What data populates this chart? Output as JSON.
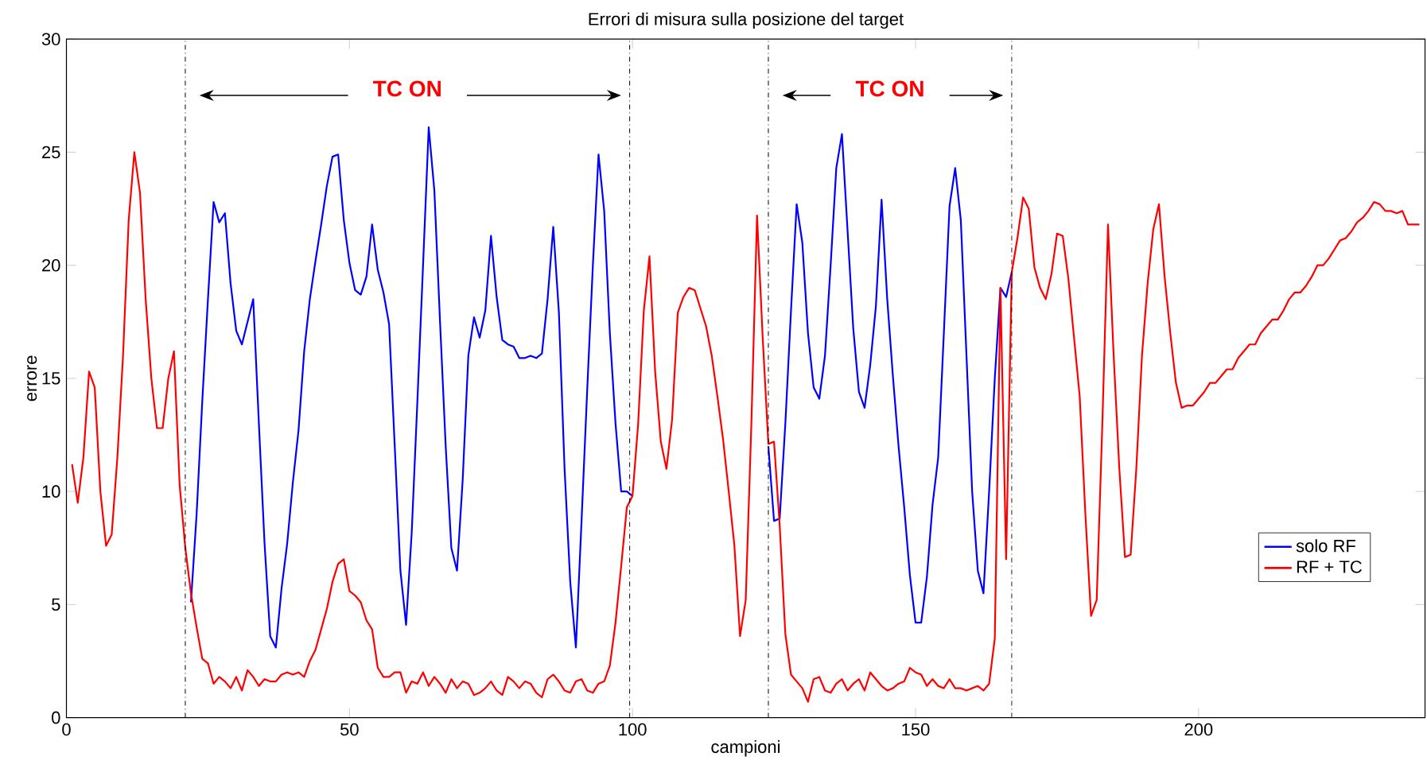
{
  "chart_data": {
    "type": "line",
    "title": "Errori di misura sulla posizione del target",
    "xlabel": "campioni",
    "ylabel": "errore",
    "x": [
      1,
      2,
      3,
      4,
      5,
      6,
      7,
      8,
      9,
      10,
      11,
      12,
      13,
      14,
      15,
      16,
      17,
      18,
      19,
      20,
      21,
      22,
      23,
      24,
      25,
      26,
      27,
      28,
      29,
      30,
      31,
      32,
      33,
      34,
      35,
      36,
      37,
      38,
      39,
      40,
      41,
      42,
      43,
      44,
      45,
      46,
      47,
      48,
      49,
      50,
      51,
      52,
      53,
      54,
      55,
      56,
      57,
      58,
      59,
      60,
      61,
      62,
      63,
      64,
      65,
      66,
      67,
      68,
      69,
      70,
      71,
      72,
      73,
      74,
      75,
      76,
      77,
      78,
      79,
      80,
      81,
      82,
      83,
      84,
      85,
      86,
      87,
      88,
      89,
      90,
      91,
      92,
      93,
      94,
      95,
      96,
      97,
      98,
      99,
      100,
      101,
      102,
      103,
      104,
      105,
      106,
      107,
      108,
      109,
      110,
      111,
      112,
      113,
      114,
      115,
      116,
      117,
      118,
      119,
      120,
      121,
      122,
      123,
      124,
      125,
      126,
      127,
      128,
      129,
      130,
      131,
      132,
      133,
      134,
      135,
      136,
      137,
      138,
      139,
      140,
      141,
      142,
      143,
      144,
      145,
      146,
      147,
      148,
      149,
      150,
      151,
      152,
      153,
      154,
      155,
      156,
      157,
      158,
      159,
      160,
      161,
      162,
      163,
      164,
      165,
      166,
      167,
      168,
      169,
      170,
      171,
      172,
      173,
      174,
      175,
      176,
      177,
      178,
      179,
      180,
      181,
      182,
      183,
      184,
      185,
      186,
      187,
      188,
      189,
      190,
      191,
      192,
      193,
      194,
      195,
      196,
      197,
      198,
      199,
      200,
      201,
      202,
      203,
      204,
      205,
      206,
      207,
      208,
      209,
      210,
      211,
      212,
      213,
      214,
      215,
      216,
      217,
      218,
      219,
      220,
      221,
      222,
      223,
      224,
      225,
      226,
      227,
      228,
      229,
      230,
      231,
      232,
      233,
      234,
      235,
      236,
      237,
      238,
      239
    ],
    "series": [
      {
        "name": "solo RF",
        "color": "#0000ff",
        "values": [
          null,
          null,
          null,
          null,
          null,
          null,
          null,
          null,
          null,
          null,
          null,
          null,
          null,
          null,
          null,
          null,
          null,
          null,
          null,
          null,
          null,
          5.1,
          9,
          14,
          18.5,
          22.8,
          21.9,
          22.3,
          19.2,
          17.1,
          16.5,
          17.5,
          18.5,
          13,
          7.7,
          3.6,
          3.1,
          5.7,
          7.7,
          10.4,
          12.7,
          16.2,
          18.5,
          20.2,
          21.8,
          23.5,
          24.8,
          24.9,
          22,
          20.1,
          18.9,
          18.7,
          19.5,
          21.8,
          19.8,
          18.8,
          17.4,
          12,
          6.5,
          4.1,
          8.2,
          14,
          20,
          26.1,
          23.3,
          17.5,
          12,
          7.5,
          6.5,
          10.5,
          16,
          17.7,
          16.8,
          18,
          21.3,
          18.6,
          16.7,
          16.5,
          16.4,
          15.9,
          15.9,
          16,
          15.9,
          16.1,
          18.5,
          21.7,
          17.9,
          11,
          6,
          3.1,
          8.7,
          14.5,
          20,
          24.9,
          22.4,
          17,
          13,
          10,
          10,
          9.8,
          null,
          null,
          null,
          null,
          null,
          null,
          null,
          null,
          null,
          null,
          null,
          null,
          null,
          null,
          null,
          null,
          null,
          null,
          null,
          null,
          null,
          null,
          null,
          12,
          8.7,
          8.8,
          13,
          18,
          22.7,
          21,
          17,
          14.6,
          14.1,
          16,
          20,
          24.3,
          25.8,
          21.5,
          17.2,
          14.4,
          13.7,
          15.6,
          18.2,
          22.9,
          18.5,
          15.1,
          12,
          9.3,
          6.3,
          4.2,
          4.2,
          6.2,
          9.4,
          11.5,
          17,
          22.6,
          24.3,
          22,
          16,
          10,
          6.5,
          5.5,
          10,
          15,
          19,
          18.6,
          19.7,
          null,
          null,
          null,
          null,
          null,
          null,
          null,
          null,
          null,
          null,
          null,
          null,
          null,
          null,
          null,
          null,
          null,
          null,
          null,
          null,
          null,
          null,
          null,
          null,
          null,
          null,
          null,
          null,
          null,
          null,
          null,
          null,
          null,
          null,
          null,
          null,
          null,
          null,
          null,
          null,
          null,
          null,
          null,
          null,
          null,
          null,
          null,
          null,
          null,
          null,
          null,
          null,
          null,
          null,
          null,
          null,
          null,
          null,
          null,
          null,
          null,
          null,
          null,
          null,
          null,
          null,
          null,
          null,
          null,
          null,
          null,
          null
        ]
      },
      {
        "name": "RF + TC",
        "color": "#ff0000",
        "values": [
          11.2,
          9.5,
          11.5,
          15.3,
          14.6,
          10,
          7.6,
          8.1,
          11.5,
          16,
          22,
          25,
          23.2,
          18.5,
          15,
          12.8,
          12.8,
          15,
          16.2,
          10.3,
          7.5,
          5.5,
          4,
          2.6,
          2.4,
          1.5,
          1.8,
          1.6,
          1.3,
          1.8,
          1.2,
          2.1,
          1.8,
          1.4,
          1.7,
          1.6,
          1.6,
          1.9,
          2,
          1.9,
          2,
          1.8,
          2.5,
          3,
          3.9,
          4.8,
          6,
          6.8,
          7,
          5.6,
          5.4,
          5.1,
          4.3,
          3.9,
          2.2,
          1.8,
          1.8,
          2,
          2,
          1.1,
          1.6,
          1.5,
          2,
          1.4,
          1.8,
          1.5,
          1.1,
          1.7,
          1.3,
          1.6,
          1.5,
          1,
          1.1,
          1.3,
          1.6,
          1.2,
          1,
          1.8,
          1.6,
          1.3,
          1.6,
          1.5,
          1.1,
          0.9,
          1.7,
          1.9,
          1.6,
          1.2,
          1.1,
          1.6,
          1.7,
          1.2,
          1.1,
          1.5,
          1.6,
          2.3,
          4.2,
          6.7,
          9.3,
          9.8,
          13,
          18,
          20.4,
          15.3,
          12.2,
          11,
          13.2,
          17.9,
          18.6,
          19,
          18.9,
          18.1,
          17.3,
          16,
          14.2,
          12.3,
          10,
          7.6,
          3.6,
          5.2,
          13,
          22.2,
          16.8,
          12.1,
          12.2,
          8.5,
          3.7,
          1.9,
          1.6,
          1.3,
          0.7,
          1.7,
          1.8,
          1.2,
          1.1,
          1.5,
          1.7,
          1.2,
          1.5,
          1.7,
          1.2,
          2,
          1.7,
          1.4,
          1.2,
          1.3,
          1.5,
          1.6,
          2.2,
          2,
          1.9,
          1.4,
          1.7,
          1.4,
          1.3,
          1.7,
          1.3,
          1.3,
          1.2,
          1.3,
          1.4,
          1.2,
          1.5,
          3.5,
          19,
          7,
          19.7,
          21.2,
          23,
          22.5,
          19.9,
          19,
          18.5,
          19.6,
          21.4,
          21.3,
          19.4,
          16.8,
          14.2,
          9,
          4.5,
          5.2,
          13,
          21.8,
          16,
          11,
          7.1,
          7.2,
          11,
          16,
          19.2,
          21.6,
          22.7,
          19.5,
          17,
          14.8,
          13.7,
          13.8,
          13.8,
          14.1,
          14.4,
          14.8,
          14.8,
          15.1,
          15.4,
          15.4,
          15.9,
          16.2,
          16.5,
          16.5,
          17,
          17.3,
          17.6,
          17.6,
          18,
          18.5,
          18.8,
          18.8,
          19.1,
          19.5,
          20,
          20,
          20.3,
          20.7,
          21.1,
          21.2,
          21.5,
          21.9,
          22.1,
          22.4,
          22.8,
          22.7,
          22.4,
          22.4,
          22.3,
          22.4,
          21.8,
          21.8,
          21.8
        ]
      }
    ],
    "xlim": [
      0,
      240
    ],
    "ylim": [
      0,
      30
    ],
    "xticks": [
      0,
      50,
      100,
      150,
      200
    ],
    "yticks": [
      0,
      5,
      10,
      15,
      20,
      25,
      30
    ],
    "grid": false,
    "legend": "bottom right",
    "line_style": "solid",
    "marker": "none",
    "ref_lines": [
      {
        "axis": "x",
        "value": 21,
        "color": "#000000",
        "line_style": "dashdot"
      },
      {
        "axis": "x",
        "value": 99.5,
        "color": "#000000",
        "line_style": "dashdot"
      },
      {
        "axis": "x",
        "value": 124,
        "color": "#000000",
        "line_style": "dashdot"
      },
      {
        "axis": "x",
        "value": 167,
        "color": "#000000",
        "line_style": "dashdot"
      }
    ],
    "annotations": [
      "TC ON",
      "TC ON"
    ]
  }
}
